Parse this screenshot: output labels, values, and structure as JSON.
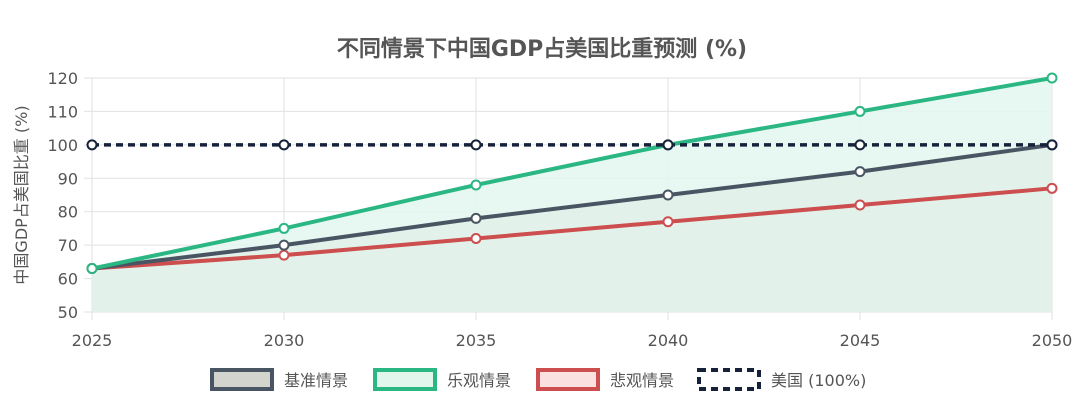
{
  "chart_data": {
    "type": "line",
    "title": "不同情景下中国GDP占美国比重预测 (%)",
    "xlabel": "",
    "ylabel": "中国GDP占美国比重 (%)",
    "x": [
      2025,
      2030,
      2035,
      2040,
      2045,
      2050
    ],
    "ylim": [
      50,
      120
    ],
    "yticks": [
      50,
      60,
      70,
      80,
      90,
      100,
      110,
      120
    ],
    "grid": true,
    "legend_position": "bottom",
    "series": [
      {
        "name": "基准情景",
        "values": [
          63,
          70,
          78,
          85,
          92,
          100
        ],
        "color": "#4a5563",
        "fill": "#d4d4cf",
        "dashed": false,
        "filled": true
      },
      {
        "name": "乐观情景",
        "values": [
          63,
          75,
          88,
          100,
          110,
          120
        ],
        "color": "#2bb783",
        "fill": "#e3f6ee",
        "dashed": false,
        "filled": true
      },
      {
        "name": "悲观情景",
        "values": [
          63,
          67,
          72,
          77,
          82,
          87
        ],
        "color": "#cc4e4e",
        "fill": "#fbe0e0",
        "dashed": false,
        "filled": false
      },
      {
        "name": "美国 (100%)",
        "values": [
          100,
          100,
          100,
          100,
          100,
          100
        ],
        "color": "#16213a",
        "fill": "#ffffff",
        "dashed": true,
        "filled": false
      }
    ]
  }
}
